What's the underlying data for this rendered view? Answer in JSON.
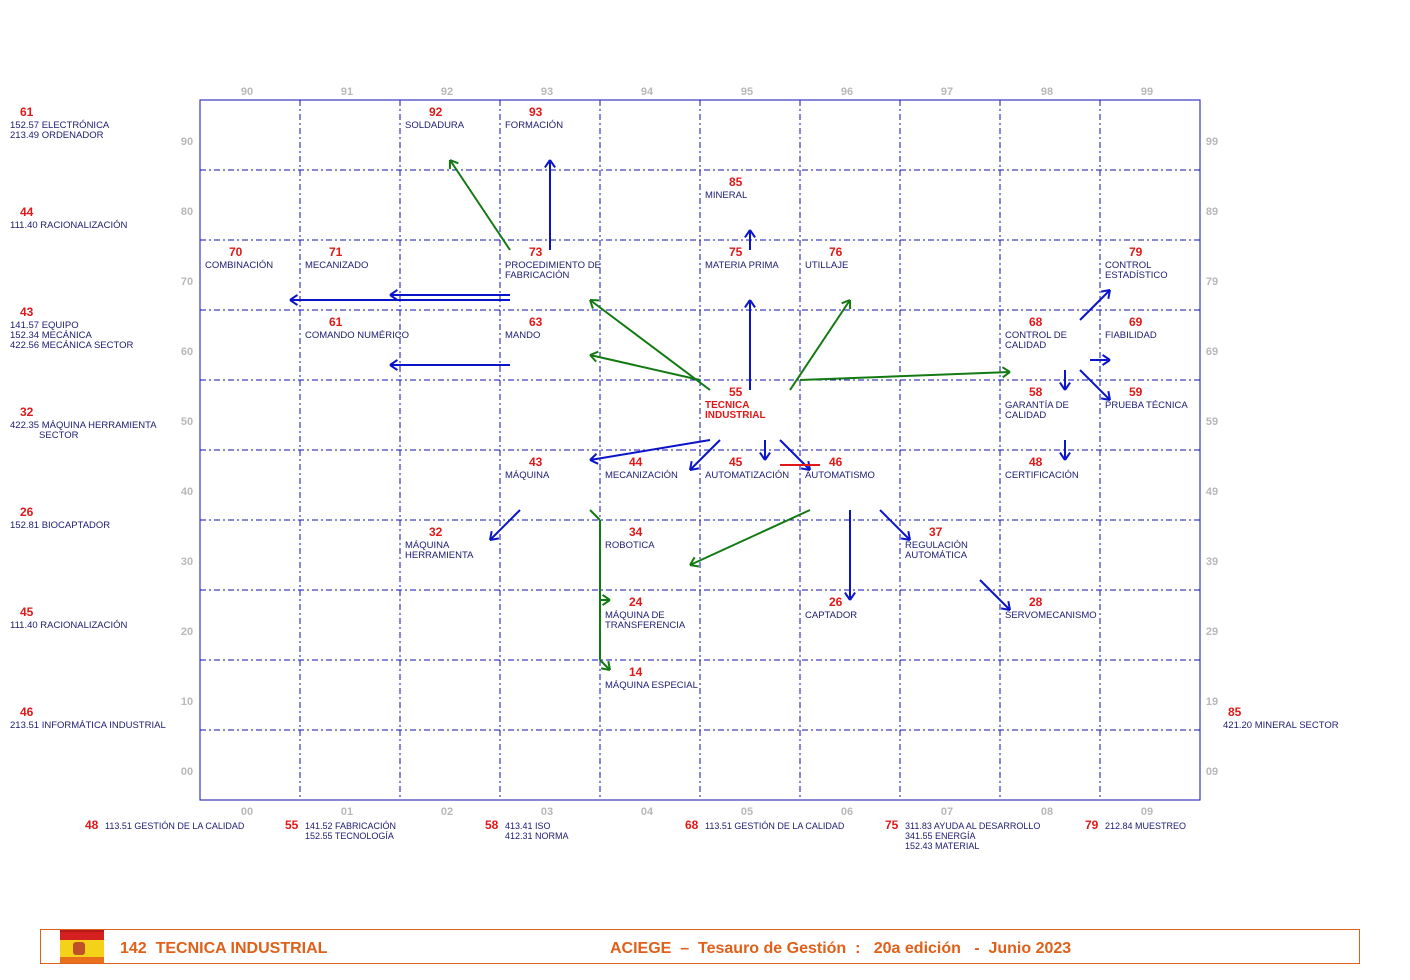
{
  "diagram": {
    "main_term": {
      "code": "55",
      "label": "TECNICA\nINDUSTRIAL"
    },
    "terms": [
      {
        "code": "92",
        "label": "SOLDADURA"
      },
      {
        "code": "93",
        "label": "FORMACIÓN"
      },
      {
        "code": "85",
        "label": "MINERAL"
      },
      {
        "code": "70",
        "label": "COMBINACIÓN"
      },
      {
        "code": "71",
        "label": "MECANIZADO"
      },
      {
        "code": "73",
        "label": "PROCEDIMIENTO DE\nFABRICACIÓN"
      },
      {
        "code": "75",
        "label": "MATERIA PRIMA"
      },
      {
        "code": "76",
        "label": "UTILLAJE"
      },
      {
        "code": "79",
        "label": "CONTROL\nESTADÍSTICO"
      },
      {
        "code": "61",
        "label": "COMANDO NUMÉRICO"
      },
      {
        "code": "63",
        "label": "MANDO"
      },
      {
        "code": "68",
        "label": "CONTROL DE\nCALIDAD"
      },
      {
        "code": "69",
        "label": "FIABILIDAD"
      },
      {
        "code": "58",
        "label": "GARANTÍA DE\nCALIDAD"
      },
      {
        "code": "59",
        "label": "PRUEBA TÉCNICA"
      },
      {
        "code": "43",
        "label": "MÁQUINA"
      },
      {
        "code": "44",
        "label": "MECANIZACIÓN"
      },
      {
        "code": "45",
        "label": "AUTOMATIZACIÓN"
      },
      {
        "code": "46",
        "label": "AUTOMATISMO"
      },
      {
        "code": "48",
        "label": "CERTIFICACIÓN"
      },
      {
        "code": "32",
        "label": "MÁQUINA\nHERRAMIENTA"
      },
      {
        "code": "34",
        "label": "ROBOTICA"
      },
      {
        "code": "37",
        "label": "REGULACIÓN\nAUTOMÁTICA"
      },
      {
        "code": "24",
        "label": "MÁQUINA DE\nTRANSFERENCIA"
      },
      {
        "code": "26",
        "label": "CAPTADOR"
      },
      {
        "code": "28",
        "label": "SERVOMECANISMO"
      },
      {
        "code": "14",
        "label": "MÁQUINA ESPECIAL"
      }
    ],
    "left_refs": [
      {
        "code": "61",
        "label": "152.57 ELECTRÓNICA\n213.49 ORDENADOR"
      },
      {
        "code": "44",
        "label": "111.40 RACIONALIZACIÓN"
      },
      {
        "code": "43",
        "label": "141.57 EQUIPO\n152.34 MECÁNICA\n422.56 MECÁNICA SECTOR"
      },
      {
        "code": "32",
        "label": "422.35 MÁQUINA HERRAMIENTA\n           SECTOR"
      },
      {
        "code": "26",
        "label": "152.81 BIOCAPTADOR"
      },
      {
        "code": "45",
        "label": "111.40 RACIONALIZACIÓN"
      },
      {
        "code": "46",
        "label": "213.51 INFORMÁTICA INDUSTRIAL"
      }
    ],
    "right_refs": [
      {
        "code": "85",
        "label": "421.20 MINERAL SECTOR"
      }
    ],
    "bottom_refs": [
      {
        "code": "48",
        "label": "113.51 GESTIÓN DE LA CALIDAD"
      },
      {
        "code": "55",
        "label": "141.52 FABRICACIÓN\n152.55 TECNOLOGÍA"
      },
      {
        "code": "58",
        "label": "413.41 ISO\n412.31 NORMA"
      },
      {
        "code": "68",
        "label": "113.51 GESTIÓN DE LA CALIDAD"
      },
      {
        "code": "75",
        "label": "311.83 AYUDA AL DESARROLLO\n341.55 ENERGÍA\n152.43 MATERIAL"
      },
      {
        "code": "79",
        "label": "212.84 MUESTREO"
      }
    ],
    "axis_top": [
      "90",
      "91",
      "92",
      "93",
      "94",
      "95",
      "96",
      "97",
      "98",
      "99"
    ],
    "axis_bottom": [
      "00",
      "01",
      "02",
      "03",
      "04",
      "05",
      "06",
      "07",
      "08",
      "09"
    ],
    "axis_left": [
      "90",
      "80",
      "70",
      "60",
      "50",
      "40",
      "30",
      "20",
      "10",
      "00"
    ],
    "axis_right": [
      "99",
      "89",
      "79",
      "69",
      "59",
      "49",
      "39",
      "29",
      "19",
      "09"
    ],
    "colors": {
      "grid": "#1010b0",
      "broader": "#0a14c8",
      "related": "#137a13",
      "negation": "#e01818",
      "code": "#e01818",
      "footer": "#e0601a"
    }
  },
  "footer": {
    "flag_icon": "spain-flag",
    "title": "142  TECNICA INDUSTRIAL",
    "subtitle": "ACIEGE  –  Tesauro de Gestión  :   20a edición   -  Junio 2023"
  }
}
